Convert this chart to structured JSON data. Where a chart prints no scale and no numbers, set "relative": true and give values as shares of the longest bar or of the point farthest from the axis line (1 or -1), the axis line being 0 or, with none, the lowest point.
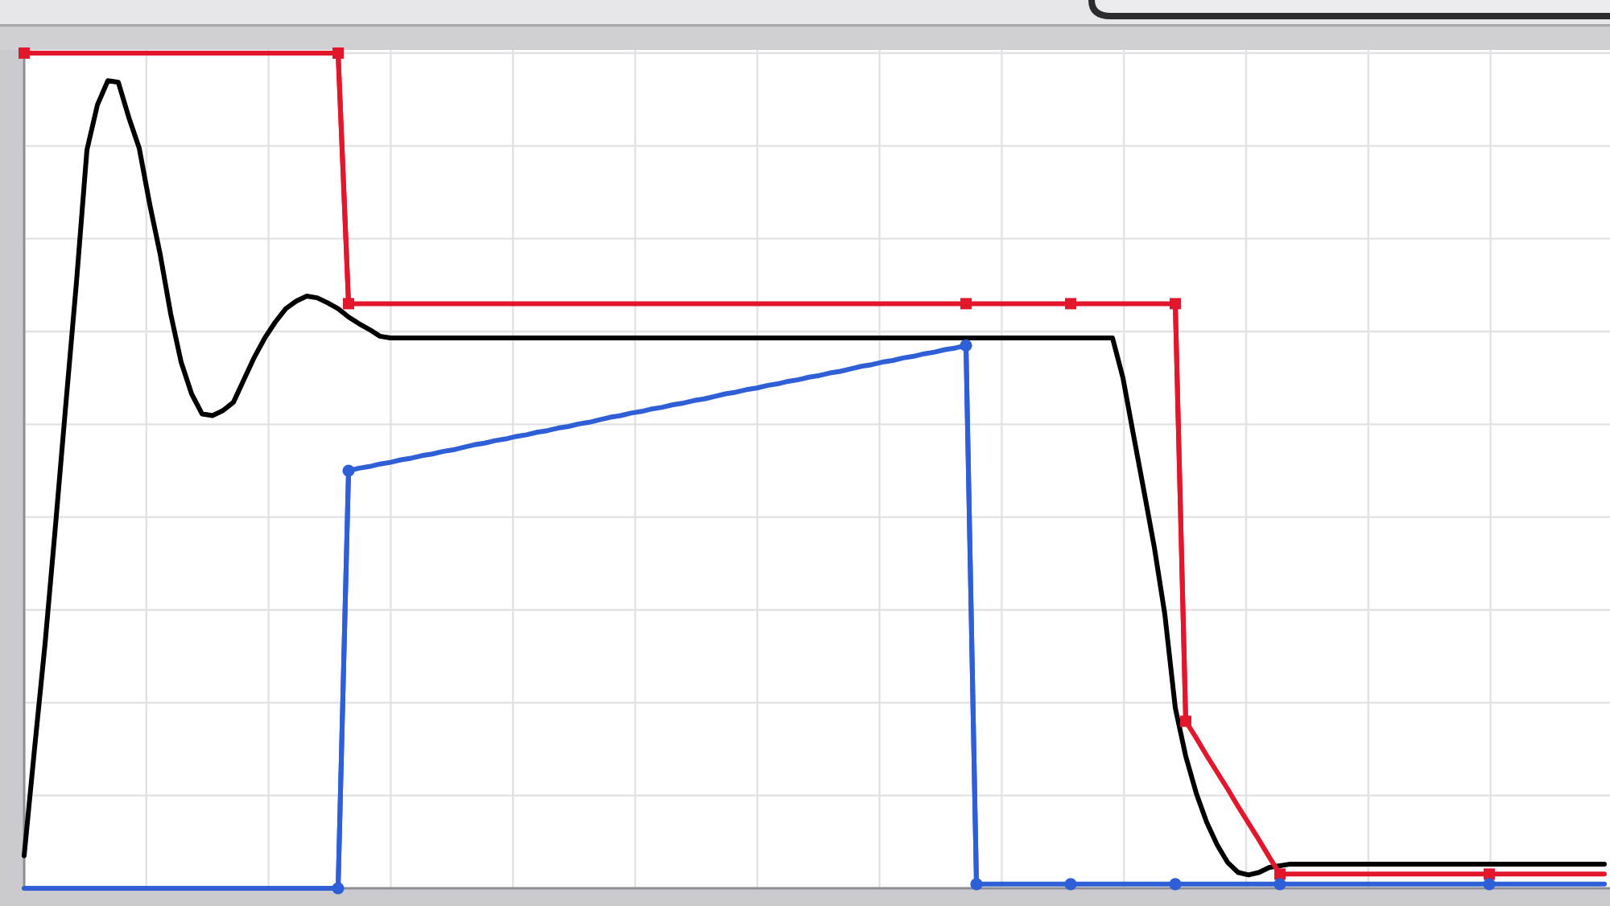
{
  "chart_data": {
    "type": "line",
    "relative": true,
    "grid": true,
    "categories": [
      null,
      null,
      null,
      null,
      null,
      null,
      null,
      null,
      null,
      null,
      null,
      null,
      null,
      null,
      null,
      null,
      null,
      null,
      null,
      null,
      null,
      null,
      null,
      null,
      null,
      null,
      null,
      null,
      null,
      null,
      null,
      null,
      null,
      null,
      null,
      null,
      null,
      null,
      null,
      null,
      null,
      null,
      null,
      null,
      null,
      null,
      null,
      null,
      null,
      null,
      null,
      null,
      null,
      null,
      null,
      null,
      null,
      null,
      null,
      null,
      null,
      null,
      null,
      null,
      null,
      null,
      null,
      null,
      null,
      null,
      null,
      null,
      null,
      null,
      null,
      null,
      null,
      null,
      null,
      null,
      null,
      null,
      null,
      null,
      null,
      null,
      null,
      null,
      null,
      null,
      null,
      null,
      null,
      null,
      null,
      null,
      null,
      null,
      null,
      null,
      null,
      null,
      null,
      null,
      null,
      null,
      null,
      null,
      null,
      null,
      null,
      null,
      null,
      null,
      null,
      null,
      null,
      null,
      null,
      null,
      null,
      null,
      null,
      null,
      null,
      null,
      null,
      null,
      null,
      null,
      null,
      null,
      null,
      null,
      null,
      null,
      null,
      null,
      null,
      null,
      null,
      null,
      null,
      null,
      null,
      null,
      null,
      null,
      null,
      null,
      null,
      null
    ],
    "series": [
      {
        "color": "#000000",
        "values": [
          0.039,
          0.168,
          0.293,
          0.435,
          0.582,
          0.726,
          0.884,
          0.938,
          0.967,
          0.965,
          0.923,
          0.886,
          0.819,
          0.759,
          0.688,
          0.63,
          0.592,
          0.568,
          0.566,
          0.572,
          0.582,
          0.609,
          0.636,
          0.659,
          0.678,
          0.694,
          0.703,
          0.709,
          0.707,
          0.701,
          0.694,
          0.684,
          0.676,
          0.669,
          0.661,
          0.659,
          0.659,
          0.659,
          0.659,
          0.659,
          0.659,
          0.659,
          0.659,
          0.659,
          0.659,
          0.659,
          0.659,
          0.659,
          0.659,
          0.659,
          0.659,
          0.659,
          0.659,
          0.659,
          0.659,
          0.659,
          0.659,
          0.659,
          0.659,
          0.659,
          0.659,
          0.659,
          0.659,
          0.659,
          0.659,
          0.659,
          0.659,
          0.659,
          0.659,
          0.659,
          0.659,
          0.659,
          0.659,
          0.659,
          0.659,
          0.659,
          0.659,
          0.659,
          0.659,
          0.659,
          0.659,
          0.659,
          0.659,
          0.659,
          0.659,
          0.659,
          0.659,
          0.659,
          0.659,
          0.659,
          0.659,
          0.659,
          0.659,
          0.659,
          0.659,
          0.659,
          0.659,
          0.659,
          0.659,
          0.659,
          0.659,
          0.659,
          0.659,
          0.659,
          0.659,
          0.611,
          0.543,
          0.476,
          0.408,
          0.328,
          0.216,
          0.158,
          0.114,
          0.079,
          0.052,
          0.031,
          0.019,
          0.016,
          0.019,
          0.025,
          0.027,
          0.029,
          0.029,
          0.029,
          0.029,
          0.029,
          0.029,
          0.029,
          0.029,
          0.029,
          0.029,
          0.029,
          0.029,
          0.029,
          0.029,
          0.029,
          0.029,
          0.029,
          0.029,
          0.029,
          0.029,
          0.029,
          0.029,
          0.029,
          0.029,
          0.029,
          0.029,
          0.029,
          0.029,
          0.029,
          0.029,
          0.029
        ]
      },
      {
        "color": "#e3172c",
        "values": [
          1,
          1,
          1,
          1,
          1,
          1,
          1,
          1,
          1,
          1,
          1,
          1,
          1,
          1,
          1,
          1,
          1,
          1,
          1,
          1,
          1,
          1,
          1,
          1,
          1,
          1,
          1,
          1,
          1,
          1,
          1,
          0.7,
          0.7,
          0.7,
          0.7,
          0.7,
          0.7,
          0.7,
          0.7,
          0.7,
          0.7,
          0.7,
          0.7,
          0.7,
          0.7,
          0.7,
          0.7,
          0.7,
          0.7,
          0.7,
          0.7,
          0.7,
          0.7,
          0.7,
          0.7,
          0.7,
          0.7,
          0.7,
          0.7,
          0.7,
          0.7,
          0.7,
          0.7,
          0.7,
          0.7,
          0.7,
          0.7,
          0.7,
          0.7,
          0.7,
          0.7,
          0.7,
          0.7,
          0.7,
          0.7,
          0.7,
          0.7,
          0.7,
          0.7,
          0.7,
          0.7,
          0.7,
          0.7,
          0.7,
          0.7,
          0.7,
          0.7,
          0.7,
          0.7,
          0.7,
          0.7,
          0.7,
          0.7,
          0.7,
          0.7,
          0.7,
          0.7,
          0.7,
          0.7,
          0.7,
          0.7,
          0.7,
          0.7,
          0.7,
          0.7,
          0.7,
          0.7,
          0.7,
          0.7,
          0.7,
          0.7,
          0.2,
          0.18,
          0.159,
          0.139,
          0.119,
          0.098,
          0.078,
          0.058,
          0.037,
          0.017,
          0.017,
          0.017,
          0.017,
          0.017,
          0.017,
          0.017,
          0.017,
          0.017,
          0.017,
          0.017,
          0.017,
          0.017,
          0.017,
          0.017,
          0.017,
          0.017,
          0.017,
          0.017,
          0.017,
          0.017,
          0.017,
          0.017,
          0.017,
          0.017,
          0.017,
          0.017,
          0.017,
          0.017,
          0.017,
          0.017,
          0.017
        ]
      },
      {
        "color": "#2e5fd6",
        "values": [
          0,
          0,
          0,
          0,
          0,
          0,
          0,
          0,
          0,
          0,
          0,
          0,
          0,
          0,
          0,
          0,
          0,
          0,
          0,
          0,
          0,
          0,
          0,
          0,
          0,
          0,
          0,
          0,
          0,
          0,
          0,
          0.5,
          0.503,
          0.505,
          0.508,
          0.51,
          0.513,
          0.515,
          0.518,
          0.52,
          0.523,
          0.525,
          0.528,
          0.531,
          0.533,
          0.536,
          0.538,
          0.541,
          0.543,
          0.546,
          0.548,
          0.551,
          0.553,
          0.556,
          0.558,
          0.561,
          0.564,
          0.566,
          0.569,
          0.571,
          0.574,
          0.576,
          0.579,
          0.581,
          0.584,
          0.586,
          0.589,
          0.592,
          0.594,
          0.597,
          0.599,
          0.602,
          0.604,
          0.607,
          0.609,
          0.612,
          0.614,
          0.617,
          0.619,
          0.622,
          0.625,
          0.627,
          0.63,
          0.632,
          0.635,
          0.637,
          0.64,
          0.642,
          0.645,
          0.647,
          0.65,
          0.005,
          0.005,
          0.005,
          0.005,
          0.005,
          0.005,
          0.005,
          0.005,
          0.005,
          0.005,
          0.005,
          0.005,
          0.005,
          0.005,
          0.005,
          0.005,
          0.005,
          0.005,
          0.005,
          0.005,
          0.005,
          0.005,
          0.005,
          0.005,
          0.005,
          0.005,
          0.005,
          0.005,
          0.005,
          0.005,
          0.005,
          0.005,
          0.005,
          0.005,
          0.005,
          0.005,
          0.005,
          0.005,
          0.005,
          0.005,
          0.005,
          0.005,
          0.005,
          0.005,
          0.005,
          0.005,
          0.005,
          0.005,
          0.005,
          0.005,
          0.005,
          0.005,
          0.005,
          0.005,
          0.005,
          0.005,
          0.005,
          0.005,
          0.005,
          0.005,
          0.005
        ]
      },
      {
        "marker": "square",
        "color": "#e3172c",
        "values": [
          1,
          null,
          null,
          null,
          null,
          null,
          null,
          null,
          null,
          null,
          null,
          null,
          null,
          null,
          null,
          null,
          null,
          null,
          null,
          null,
          null,
          null,
          null,
          null,
          null,
          null,
          null,
          null,
          null,
          null,
          1,
          0.7,
          null,
          null,
          null,
          null,
          null,
          null,
          null,
          null,
          null,
          null,
          null,
          null,
          null,
          null,
          null,
          null,
          null,
          null,
          null,
          null,
          null,
          null,
          null,
          null,
          null,
          null,
          null,
          null,
          null,
          null,
          null,
          null,
          null,
          null,
          null,
          null,
          null,
          null,
          null,
          null,
          null,
          null,
          null,
          null,
          null,
          null,
          null,
          null,
          null,
          null,
          null,
          null,
          null,
          null,
          null,
          null,
          null,
          null,
          0.7,
          null,
          null,
          null,
          null,
          null,
          null,
          null,
          null,
          null,
          0.7,
          null,
          null,
          null,
          null,
          null,
          null,
          null,
          null,
          null,
          0.7,
          0.2,
          null,
          null,
          null,
          null,
          null,
          null,
          null,
          null,
          0.017,
          null,
          null,
          null,
          null,
          null,
          null,
          null,
          null,
          null,
          null,
          null,
          null,
          null,
          null,
          null,
          null,
          null,
          null,
          null,
          0.017,
          null,
          null,
          null,
          null,
          null,
          null,
          null,
          null,
          null,
          null,
          null
        ]
      },
      {
        "marker": "circle",
        "color": "#2e5fd6",
        "values": [
          null,
          null,
          null,
          null,
          null,
          null,
          null,
          null,
          null,
          null,
          null,
          null,
          null,
          null,
          null,
          null,
          null,
          null,
          null,
          null,
          null,
          null,
          null,
          null,
          null,
          null,
          null,
          null,
          null,
          null,
          0,
          0.5,
          null,
          null,
          null,
          null,
          null,
          null,
          null,
          null,
          null,
          null,
          null,
          null,
          null,
          null,
          null,
          null,
          null,
          null,
          null,
          null,
          null,
          null,
          null,
          null,
          null,
          null,
          null,
          null,
          null,
          null,
          null,
          null,
          null,
          null,
          null,
          null,
          null,
          null,
          null,
          null,
          null,
          null,
          null,
          null,
          null,
          null,
          null,
          null,
          null,
          null,
          null,
          null,
          null,
          null,
          null,
          null,
          null,
          null,
          0.65,
          0.005,
          null,
          null,
          null,
          null,
          null,
          null,
          null,
          null,
          0.005,
          null,
          null,
          null,
          null,
          null,
          null,
          null,
          null,
          null,
          0.005,
          null,
          null,
          null,
          null,
          null,
          null,
          null,
          null,
          null,
          0.005,
          null,
          null,
          null,
          null,
          null,
          null,
          null,
          null,
          null,
          null,
          null,
          null,
          null,
          null,
          null,
          null,
          null,
          null,
          null,
          0.005,
          null,
          null,
          null,
          null,
          null,
          null,
          null,
          null,
          null,
          null,
          null
        ]
      }
    ]
  }
}
